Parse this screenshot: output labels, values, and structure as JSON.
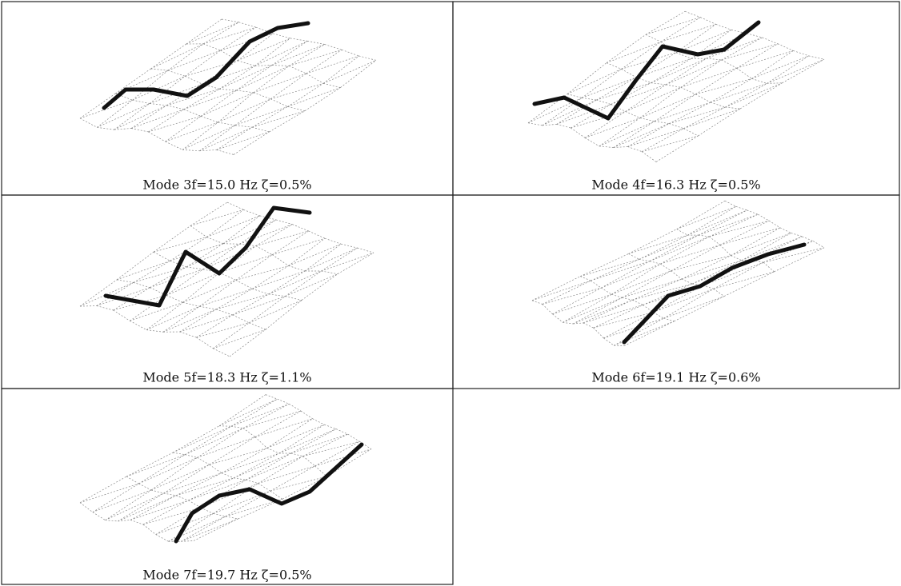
{
  "panels": [
    {
      "caption": "Mode 3f=15.0  Hz  ζ=0.5%"
    },
    {
      "caption": "Mode 4f=16.3  Hz  ζ=0.5%"
    },
    {
      "caption": "Mode 5f=18.3  Hz  ζ=1.1%"
    },
    {
      "caption": "Mode 6f=19.1  Hz  ζ=0.6%"
    },
    {
      "caption": "Mode 7f=19.7  Hz  ζ=0.5%"
    }
  ]
}
